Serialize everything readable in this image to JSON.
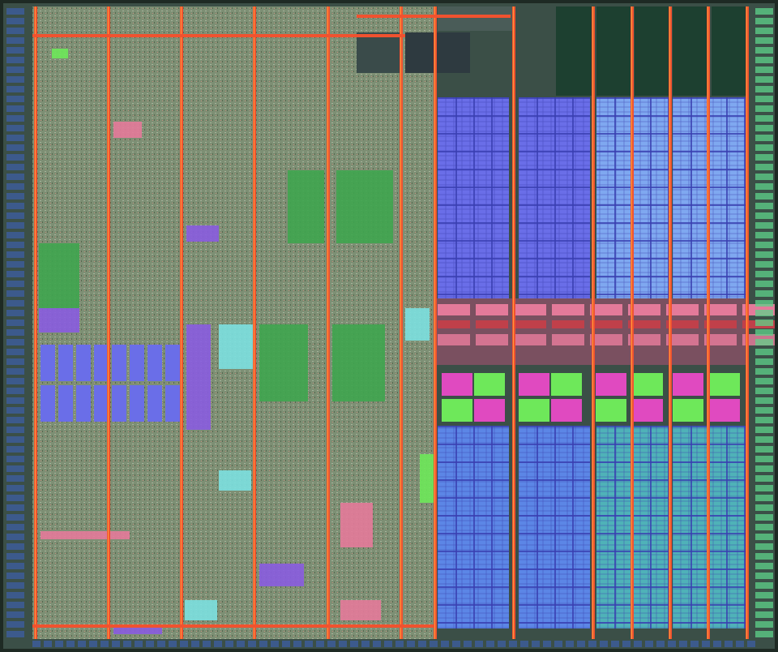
{
  "image": {
    "subject": "microprocessor-die-photograph",
    "colors": {
      "background": "#1e2a24",
      "die_edge": "#3b4f47",
      "logic_fill": "#7d8f74",
      "logic_speckle_a": "#a6b39b",
      "logic_speckle_b": "#56684f",
      "power_rail": "#f0522f",
      "power_rail_highlight": "#ff9a3c",
      "cache_blue_top": "#6a6ee8",
      "cache_blue_top_light": "#7fa8f0",
      "cache_blue_bottom": "#5c86e6",
      "cache_teal_bottom": "#4fb2b8",
      "cache_grid_line": "#3a3fb0",
      "dark_green_block": "#1d4030",
      "tag_magenta": "#e04ac0",
      "tag_green": "#6ee85a",
      "io_pad_blue": "#3c5a8c",
      "io_pad_green": "#5fd18a",
      "purple_block": "#8a5ce0",
      "green_array": "#3fa54f",
      "pink_array": "#e47a9a",
      "cyan_array": "#7ce0e0",
      "red_band": "#c0404a"
    }
  }
}
